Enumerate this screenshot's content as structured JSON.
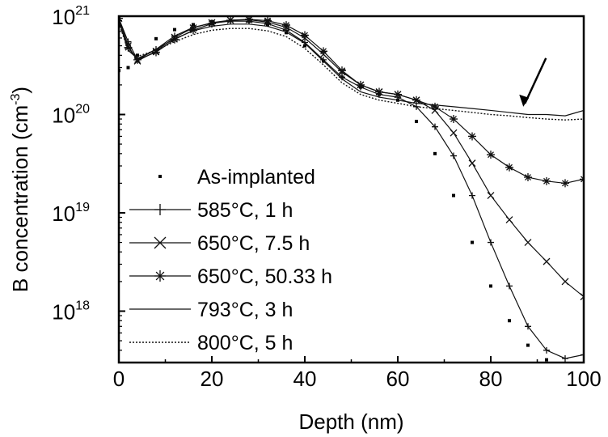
{
  "chart_data": {
    "type": "line",
    "xlabel": "Depth (nm)",
    "ylabel": "B concentration (cm-3)",
    "ylabel_parts": {
      "main": "B concentration (cm",
      "exp": "-3",
      "close": ")"
    },
    "xlim": [
      0,
      100
    ],
    "ylim": [
      3e+17,
      1e+21
    ],
    "yscale": "log",
    "grid": false,
    "legend_position": "bottom-left",
    "x_ticks": [
      0,
      20,
      40,
      60,
      80,
      100
    ],
    "x_tick_labels": [
      "0",
      "20",
      "40",
      "60",
      "80",
      "100"
    ],
    "y_ticks": [
      {
        "value": 1e+21,
        "base": "10",
        "exp": "21"
      },
      {
        "value": 1e+20,
        "base": "10",
        "exp": "20"
      },
      {
        "value": 1e+19,
        "base": "10",
        "exp": "19"
      },
      {
        "value": 1e+18,
        "base": "10",
        "exp": "18"
      }
    ],
    "annotation": {
      "type": "arrow",
      "pointing_to": {
        "x": 87,
        "y": 1.2e+20
      }
    },
    "series": [
      {
        "name": "As-implanted",
        "marker": "square",
        "line": "none",
        "x": [
          0,
          2,
          4,
          8,
          12,
          16,
          20,
          24,
          28,
          32,
          36,
          40,
          44,
          48,
          52,
          56,
          60,
          64,
          68,
          72,
          76,
          80,
          84,
          88,
          92
        ],
        "y": [
          2.8e+20,
          3e+20,
          4e+20,
          5.9e+20,
          7.3e+20,
          8.2e+20,
          8.8e+20,
          9e+20,
          8.9e+20,
          8.2e+20,
          6.8e+20,
          5e+20,
          3.5e+20,
          2.4e+20,
          1.9e+20,
          1.6e+20,
          1.4e+20,
          8.5e+19,
          4e+19,
          1.5e+19,
          5e+18,
          1.8e+18,
          8e+17,
          4.5e+17,
          3.2e+17
        ]
      },
      {
        "name": "585°C, 1 h",
        "marker": "plus",
        "line": "solid",
        "x": [
          0,
          2,
          4,
          8,
          12,
          16,
          20,
          24,
          28,
          32,
          36,
          40,
          44,
          48,
          52,
          56,
          60,
          64,
          68,
          72,
          76,
          80,
          84,
          88,
          92,
          96,
          100
        ],
        "y": [
          9.5e+20,
          5.5e+20,
          3.6e+20,
          4.6e+20,
          6.3e+20,
          7.7e+20,
          8.5e+20,
          8.9e+20,
          8.9e+20,
          8.4e+20,
          7.2e+20,
          5.4e+20,
          3.6e+20,
          2.4e+20,
          1.9e+20,
          1.6e+20,
          1.5e+20,
          1.2e+20,
          7.5e+19,
          3.8e+19,
          1.5e+19,
          5e+18,
          1.8e+18,
          7e+17,
          4e+17,
          3.3e+17,
          3.6e+17
        ]
      },
      {
        "name": "650°C, 7.5 h",
        "marker": "x",
        "line": "solid",
        "x": [
          0,
          2,
          4,
          8,
          12,
          16,
          20,
          24,
          28,
          32,
          36,
          40,
          44,
          48,
          52,
          56,
          60,
          64,
          68,
          72,
          76,
          80,
          84,
          88,
          92,
          96,
          100
        ],
        "y": [
          9.5e+20,
          5e+20,
          3.5e+20,
          4.4e+20,
          6.1e+20,
          7.6e+20,
          8.6e+20,
          9.1e+20,
          9.2e+20,
          8.7e+20,
          7.7e+20,
          6e+20,
          4.1e+20,
          2.7e+20,
          2e+20,
          1.7e+20,
          1.6e+20,
          1.4e+20,
          1.1e+20,
          6.5e+19,
          3.2e+19,
          1.5e+19,
          8.5e+18,
          5e+18,
          3.2e+18,
          2e+18,
          1.4e+18
        ]
      },
      {
        "name": "650°C, 50.33 h",
        "marker": "asterisk",
        "line": "solid",
        "x": [
          0,
          2,
          4,
          8,
          12,
          16,
          20,
          24,
          28,
          32,
          36,
          40,
          44,
          48,
          52,
          56,
          60,
          64,
          68,
          72,
          76,
          80,
          84,
          88,
          92,
          96,
          100
        ],
        "y": [
          9.5e+20,
          4.8e+20,
          3.6e+20,
          4.3e+20,
          5.8e+20,
          7.2e+20,
          8.4e+20,
          9.1e+20,
          9.3e+20,
          9e+20,
          8.1e+20,
          6.4e+20,
          4.4e+20,
          2.8e+20,
          2e+20,
          1.7e+20,
          1.6e+20,
          1.4e+20,
          1.2e+20,
          9e+19,
          6e+19,
          3.9e+19,
          2.9e+19,
          2.3e+19,
          2.1e+19,
          2e+19,
          2.2e+19
        ]
      },
      {
        "name": "793°C, 3 h",
        "marker": "none",
        "line": "solid",
        "x": [
          0,
          2,
          4,
          8,
          12,
          16,
          20,
          24,
          28,
          32,
          36,
          40,
          44,
          48,
          52,
          56,
          60,
          64,
          68,
          72,
          76,
          80,
          84,
          88,
          92,
          96,
          100
        ],
        "y": [
          9e+20,
          4.5e+20,
          3.7e+20,
          4.6e+20,
          5.9e+20,
          7.1e+20,
          7.9e+20,
          8.3e+20,
          8.3e+20,
          7.9e+20,
          6.9e+20,
          5.3e+20,
          3.5e+20,
          2.3e+20,
          1.7e+20,
          1.5e+20,
          1.4e+20,
          1.3e+20,
          1.25e+20,
          1.2e+20,
          1.15e+20,
          1.1e+20,
          1.05e+20,
          1e+20,
          1e+20,
          9.7e+19,
          1.1e+20
        ]
      },
      {
        "name": "800°C, 5 h",
        "marker": "none",
        "line": "dotted",
        "x": [
          0,
          2,
          4,
          8,
          12,
          16,
          20,
          24,
          28,
          32,
          36,
          40,
          44,
          48,
          52,
          56,
          60,
          64,
          68,
          72,
          76,
          80,
          84,
          88,
          92,
          96,
          100
        ],
        "y": [
          8.5e+20,
          4.5e+20,
          3.9e+20,
          4.5e+20,
          5.5e+20,
          6.5e+20,
          7.2e+20,
          7.5e+20,
          7.5e+20,
          7.1e+20,
          6.2e+20,
          4.7e+20,
          3.2e+20,
          2.1e+20,
          1.6e+20,
          1.4e+20,
          1.3e+20,
          1.2e+20,
          1.15e+20,
          1.1e+20,
          1.05e+20,
          1e+20,
          9.7e+19,
          9.3e+19,
          9e+19,
          8.8e+19,
          9e+19
        ]
      }
    ]
  }
}
